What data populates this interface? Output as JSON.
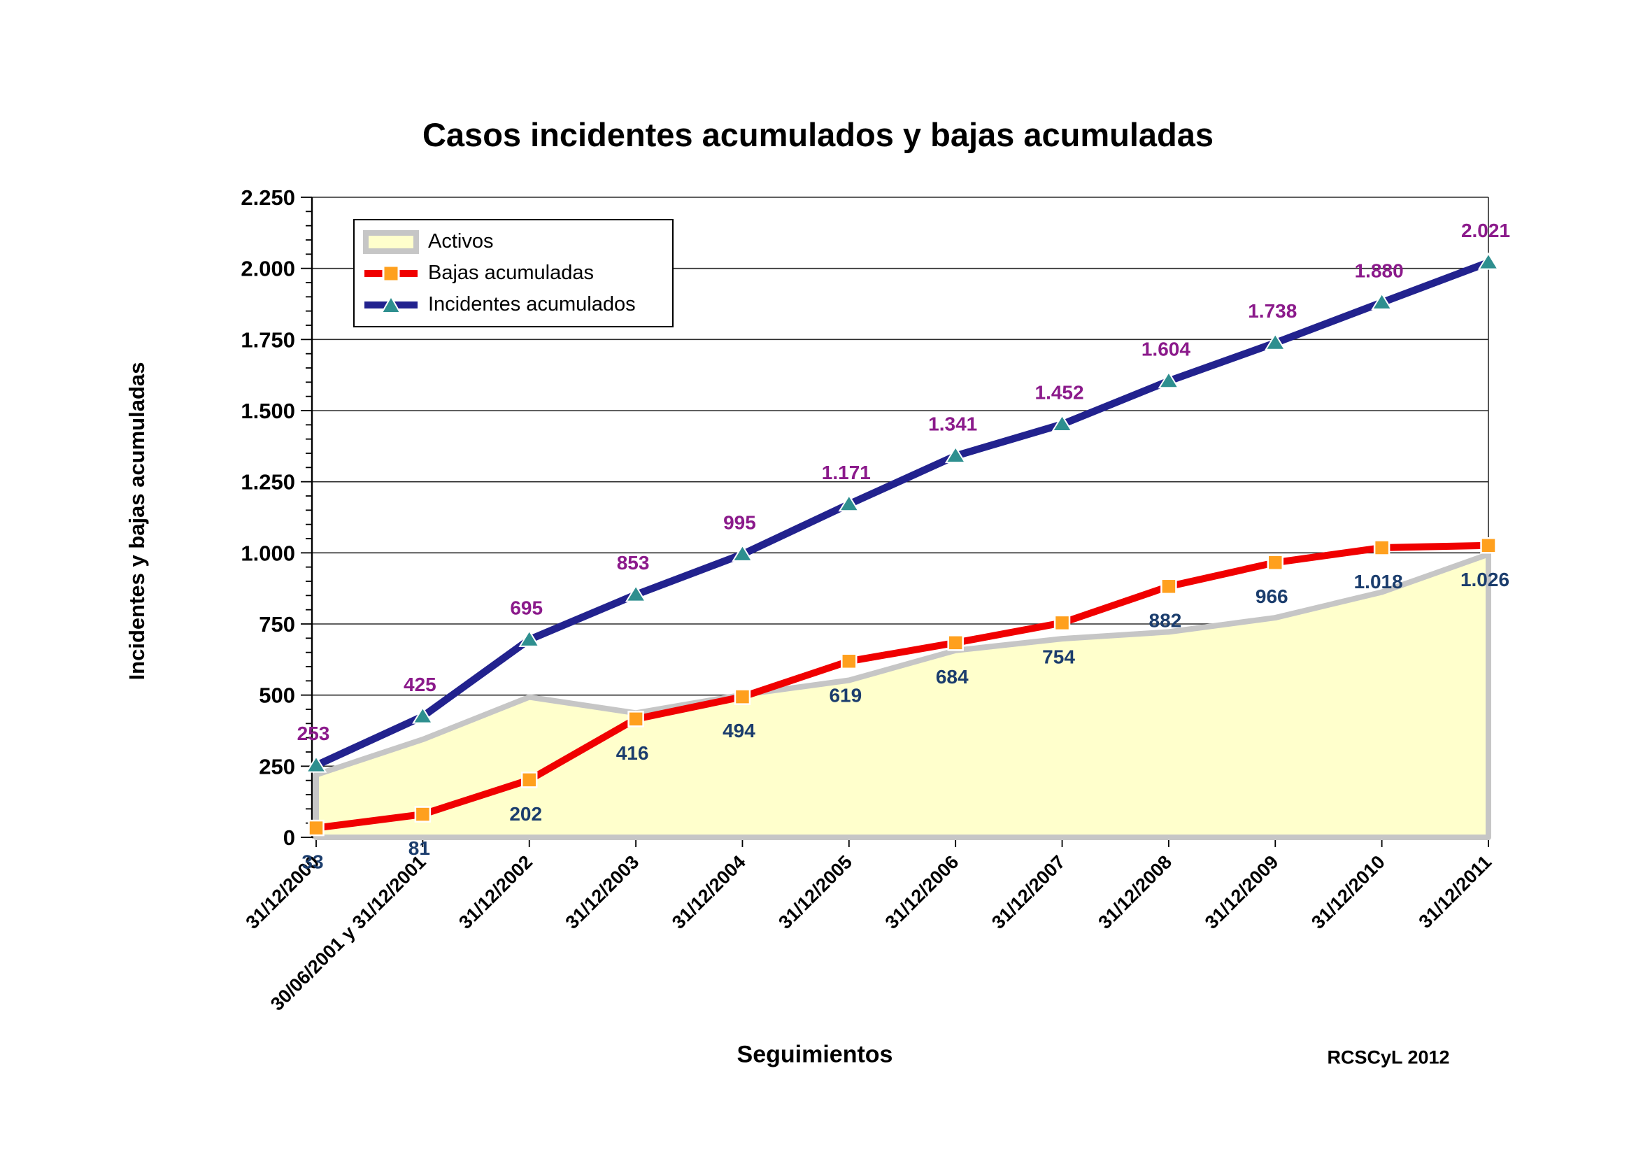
{
  "title": "Casos incidentes acumulados y bajas acumuladas",
  "y_axis_title": "Incidentes y bajas acumuladas",
  "x_axis_title": "Seguimientos",
  "credit": "RCSCyL 2012",
  "legend": {
    "items": [
      {
        "label": "Activos",
        "swatch": "area"
      },
      {
        "label": "Bajas acumuladas",
        "swatch": "line-square"
      },
      {
        "label": "Incidentes acumulados",
        "swatch": "line-triangle"
      }
    ]
  },
  "colors": {
    "incidentes_line": "#22228E",
    "incidentes_marker": "#2E8F8F",
    "incidentes_label": "#8B1A8B",
    "bajas_line": "#F00000",
    "bajas_marker": "#FFA01E",
    "bajas_label": "#1B3D6D",
    "activos_fill": "#FFFFCC",
    "activos_border": "#C6C6C6",
    "grid": "#2b2b2b",
    "axis": "#000000"
  },
  "chart_data": {
    "type": "line",
    "title": "Casos incidentes acumulados y bajas acumuladas",
    "xlabel": "Seguimientos",
    "ylabel": "Incidentes y bajas acumuladas",
    "ylim": [
      0,
      2250
    ],
    "y_tick_step": 250,
    "y_minor_tick_step": 50,
    "grid": "horizontal",
    "legend_position": "top-left",
    "y_tick_labels": [
      "0",
      "250",
      "500",
      "750",
      "1.000",
      "1.250",
      "1.500",
      "1.750",
      "2.000",
      "2.250"
    ],
    "categories": [
      "31/12/2000",
      "30/06/2001 y 31/12/2001",
      "31/12/2002",
      "31/12/2003",
      "31/12/2004",
      "31/12/2005",
      "31/12/2006",
      "31/12/2007",
      "31/12/2008",
      "31/12/2009",
      "31/12/2010",
      "31/12/2011"
    ],
    "series": [
      {
        "name": "Incidentes acumulados",
        "type": "line",
        "marker": "triangle",
        "values": [
          253,
          425,
          695,
          853,
          995,
          1171,
          1341,
          1452,
          1604,
          1738,
          1880,
          2021
        ],
        "labels": [
          "253",
          "425",
          "695",
          "853",
          "995",
          "1.171",
          "1.341",
          "1.452",
          "1.604",
          "1.738",
          "1.880",
          "2.021"
        ]
      },
      {
        "name": "Bajas acumuladas",
        "type": "line",
        "marker": "square",
        "values": [
          33,
          81,
          202,
          416,
          494,
          619,
          684,
          754,
          882,
          966,
          1018,
          1026
        ],
        "labels": [
          "33",
          "81",
          "202",
          "416",
          "494",
          "619",
          "684",
          "754",
          "882",
          "966",
          "1.018",
          "1.026"
        ]
      },
      {
        "name": "Activos",
        "type": "area",
        "values": [
          220,
          344,
          493,
          437,
          501,
          552,
          657,
          698,
          722,
          772,
          862,
          995
        ]
      }
    ]
  }
}
